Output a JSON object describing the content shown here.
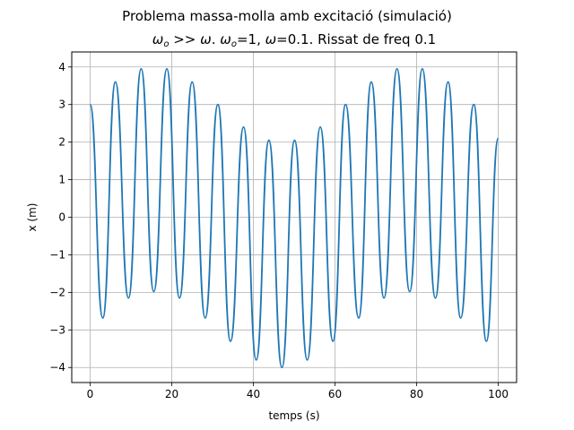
{
  "chart_data": {
    "type": "line",
    "title": "Problema massa-molla amb excitació (simulació)",
    "subtitle": "ωo >> ω. ωo=1, ω=0.1. Rissat de freq 0.1",
    "subtitle_parts": {
      "s1": "ω",
      "s1sub": "o",
      "s2": " >> ",
      "s3": "ω",
      "s4": ". ",
      "s5": "ω",
      "s5sub": "o",
      "s6": "=1, ",
      "s7": "ω",
      "s8": "=0.1. Rissat de freq 0.1"
    },
    "xlabel": "temps (s)",
    "ylabel": "x (m)",
    "xlim": [
      -4.5,
      104.5
    ],
    "ylim": [
      -4.4,
      4.4
    ],
    "xticks": [
      0,
      20,
      40,
      60,
      80,
      100
    ],
    "yticks": [
      -4,
      -3,
      -2,
      -1,
      0,
      1,
      2,
      3,
      4
    ],
    "xtick_labels": [
      "0",
      "20",
      "40",
      "60",
      "80",
      "100"
    ],
    "ytick_labels": [
      "−4",
      "−3",
      "−2",
      "−1",
      "0",
      "1",
      "2",
      "3",
      "4"
    ],
    "grid": true,
    "series": [
      {
        "color": "#1f77b4",
        "x": [
          0,
          3.1,
          6.2,
          9.4,
          12.5,
          15.6,
          18.8,
          21.9,
          25.0,
          28.2,
          31.3,
          34.4,
          37.6,
          40.7,
          43.8,
          47.0,
          50.1,
          53.2,
          56.4,
          59.5,
          62.6,
          65.8,
          68.9,
          72.0,
          75.2,
          78.3,
          81.4,
          84.6,
          87.7,
          90.8,
          94.0,
          97.1,
          100
        ],
        "y": [
          3.0,
          -2.68,
          3.6,
          -2.15,
          3.95,
          -1.98,
          3.95,
          -2.15,
          3.6,
          -2.68,
          3.0,
          -3.3,
          2.4,
          -3.8,
          2.05,
          -4.0,
          2.05,
          -3.8,
          2.4,
          -3.3,
          3.0,
          -2.68,
          3.6,
          -2.15,
          3.95,
          -1.98,
          3.95,
          -2.15,
          3.6,
          -2.68,
          3.0,
          -3.3,
          2.1
        ]
      }
    ]
  }
}
